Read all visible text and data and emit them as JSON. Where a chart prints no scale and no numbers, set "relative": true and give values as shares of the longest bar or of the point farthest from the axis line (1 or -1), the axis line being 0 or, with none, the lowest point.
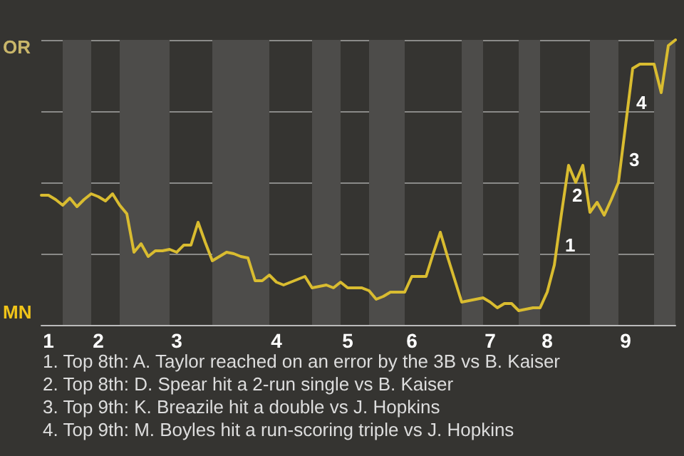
{
  "chart_data": {
    "type": "line",
    "relative": true,
    "categories": [
      null,
      "1",
      null,
      null,
      null,
      null,
      null,
      null,
      "2",
      null,
      null,
      null,
      null,
      null,
      null,
      null,
      null,
      null,
      null,
      "3",
      null,
      null,
      null,
      null,
      null,
      null,
      null,
      null,
      null,
      null,
      null,
      null,
      null,
      "4",
      null,
      null,
      null,
      null,
      null,
      null,
      null,
      null,
      null,
      "5",
      null,
      null,
      null,
      null,
      null,
      null,
      null,
      null,
      "6",
      null,
      null,
      null,
      null,
      null,
      null,
      null,
      null,
      null,
      null,
      "7",
      null,
      null,
      null,
      null,
      null,
      null,
      null,
      "8",
      null,
      null,
      null,
      null,
      null,
      null,
      null,
      null,
      null,
      null,
      "9",
      null,
      null,
      null,
      null,
      null,
      null,
      null
    ],
    "values": [
      0.455,
      0.455,
      0.44,
      0.42,
      0.445,
      0.415,
      0.44,
      0.46,
      0.45,
      0.435,
      0.46,
      0.42,
      0.39,
      0.255,
      0.285,
      0.24,
      0.26,
      0.26,
      0.265,
      0.255,
      0.28,
      0.28,
      0.36,
      0.29,
      0.225,
      0.24,
      0.255,
      0.25,
      0.24,
      0.235,
      0.155,
      0.155,
      0.175,
      0.15,
      0.14,
      0.15,
      0.16,
      0.17,
      0.13,
      0.135,
      0.14,
      0.13,
      0.15,
      0.13,
      0.13,
      0.13,
      0.12,
      0.09,
      0.1,
      0.115,
      0.115,
      0.115,
      0.17,
      0.17,
      0.17,
      0.25,
      0.325,
      0.24,
      0.16,
      0.08,
      0.085,
      0.09,
      0.095,
      0.08,
      0.06,
      0.075,
      0.075,
      0.05,
      0.055,
      0.06,
      0.06,
      0.115,
      0.21,
      0.39,
      0.56,
      0.5,
      0.56,
      0.395,
      0.43,
      0.385,
      0.44,
      0.5,
      0.7,
      0.9,
      0.915,
      0.915,
      0.915,
      0.815,
      0.98,
      1.0
    ],
    "color": "#d9bc30",
    "grid": "y",
    "annotations": [
      "OR",
      "MN",
      "1",
      "2",
      "3",
      "4",
      "1. Top 8th: A. Taylor reached on an error by the 3B vs B. Kaiser",
      "2. Top 8th: D. Spear hit a 2-run single vs B. Kaiser",
      "3. Top 9th: K. Breazile hit a double vs J. Hopkins",
      "4. Top 9th: M. Boyles hit a run-scoring triple vs J. Hopkins"
    ],
    "marker": "none",
    "line_style": "solid"
  }
}
